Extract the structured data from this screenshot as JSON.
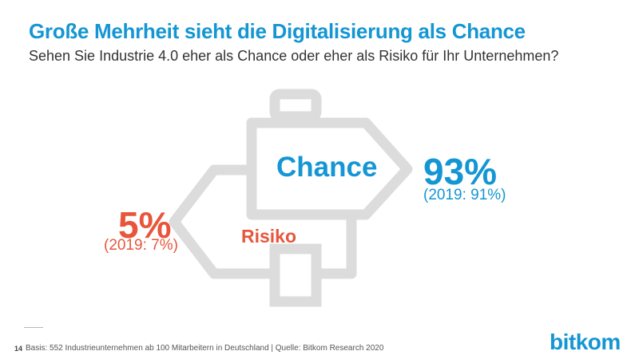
{
  "header": {
    "title": "Große Mehrheit sieht die Digitalisierung als Chance",
    "subtitle": "Sehen Sie Industrie 4.0 eher als Chance oder eher als Risiko für Ihr Unternehmen?"
  },
  "chart_data": {
    "type": "pictogram",
    "categories": [
      "Chance",
      "Risiko"
    ],
    "values": [
      93,
      5
    ],
    "previous_values": [
      91,
      7
    ],
    "value_labels": [
      "93%",
      "5%"
    ],
    "previous_labels": [
      "(2019: 91%)",
      "(2019: 7%)"
    ],
    "colors": {
      "Chance": "#1496d4",
      "Risiko": "#e8553b",
      "signpost": "#dcdcdc"
    }
  },
  "footer": {
    "page_number": "14",
    "note": "Basis: 552 Industrieunternehmen ab 100 Mitarbeitern in Deutschland | Quelle: Bitkom Research 2020",
    "logo": "bitkom"
  }
}
